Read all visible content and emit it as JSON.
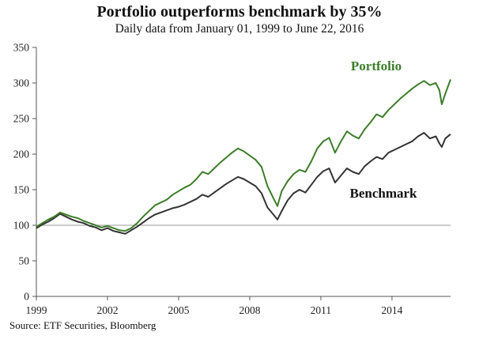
{
  "chart_data": {
    "type": "line",
    "title": "Portfolio outperforms benchmark by 35%",
    "subtitle": "Daily data from January 01, 1999 to June 22, 2016",
    "source": "Source: ETF Securities, Bloomberg",
    "xlabel": "",
    "ylabel": "",
    "xlim": [
      1999.0,
      2016.47
    ],
    "ylim": [
      0,
      350
    ],
    "x_ticks": [
      1999,
      2002,
      2005,
      2008,
      2011,
      2014
    ],
    "y_ticks": [
      0,
      50,
      100,
      150,
      200,
      250,
      300,
      350
    ],
    "baseline": 100,
    "grid": false,
    "colors": {
      "Portfolio": "#3d7d2a",
      "Benchmark": "#333333",
      "baseline": "#999999"
    },
    "x": [
      1999.0,
      1999.25,
      1999.5,
      1999.75,
      2000.0,
      2000.25,
      2000.5,
      2000.75,
      2001.0,
      2001.25,
      2001.5,
      2001.75,
      2002.0,
      2002.25,
      2002.5,
      2002.75,
      2003.0,
      2003.25,
      2003.5,
      2003.75,
      2004.0,
      2004.25,
      2004.5,
      2004.75,
      2005.0,
      2005.25,
      2005.5,
      2005.75,
      2006.0,
      2006.25,
      2006.5,
      2006.75,
      2007.0,
      2007.25,
      2007.5,
      2007.75,
      2008.0,
      2008.25,
      2008.5,
      2008.75,
      2009.0,
      2009.17,
      2009.35,
      2009.6,
      2009.85,
      2010.1,
      2010.35,
      2010.6,
      2010.85,
      2011.1,
      2011.35,
      2011.6,
      2011.85,
      2012.1,
      2012.35,
      2012.6,
      2012.85,
      2013.1,
      2013.35,
      2013.6,
      2013.85,
      2014.1,
      2014.35,
      2014.6,
      2014.85,
      2015.1,
      2015.35,
      2015.6,
      2015.85,
      2016.0,
      2016.1,
      2016.25,
      2016.47
    ],
    "series": [
      {
        "name": "Portfolio",
        "values": [
          98,
          103,
          108,
          112,
          118,
          115,
          112,
          110,
          106,
          103,
          100,
          97,
          99,
          96,
          93,
          92,
          96,
          103,
          112,
          120,
          128,
          132,
          136,
          143,
          148,
          153,
          157,
          165,
          175,
          172,
          180,
          188,
          195,
          202,
          208,
          204,
          198,
          192,
          182,
          155,
          138,
          127,
          148,
          162,
          172,
          178,
          175,
          190,
          208,
          218,
          223,
          202,
          218,
          232,
          226,
          222,
          235,
          245,
          256,
          252,
          262,
          270,
          278,
          285,
          292,
          298,
          303,
          297,
          300,
          290,
          270,
          285,
          305
        ]
      },
      {
        "name": "Benchmark",
        "values": [
          96,
          101,
          105,
          110,
          116,
          112,
          108,
          105,
          103,
          99,
          97,
          93,
          96,
          92,
          90,
          88,
          93,
          98,
          104,
          110,
          115,
          118,
          121,
          124,
          126,
          129,
          133,
          137,
          143,
          140,
          146,
          152,
          158,
          163,
          168,
          165,
          160,
          155,
          145,
          125,
          115,
          108,
          120,
          135,
          145,
          150,
          146,
          157,
          168,
          176,
          180,
          160,
          170,
          180,
          175,
          172,
          183,
          190,
          196,
          193,
          202,
          206,
          210,
          214,
          218,
          225,
          230,
          222,
          225,
          215,
          210,
          222,
          228
        ]
      }
    ]
  }
}
